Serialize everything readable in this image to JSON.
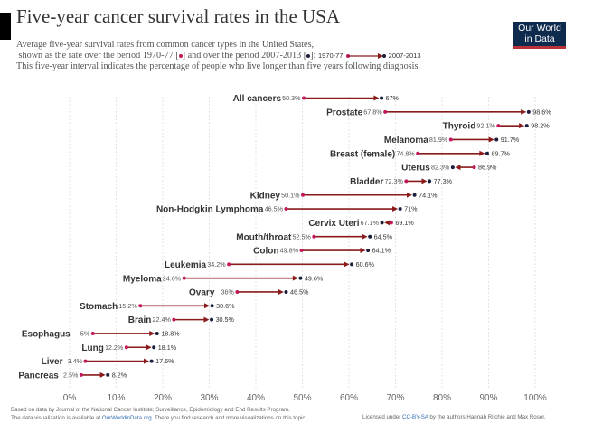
{
  "header": {
    "title": "Five-year cancer survival rates in the USA",
    "subtitle_line1": "Average five-year survival rates from common cancer types in the United States,",
    "subtitle_line2a": "shown as the rate over the period 1970-77 [",
    "subtitle_line2b": "] and over the period 2007-2013 [",
    "subtitle_line2c": "]:",
    "legend_start": "1970-77",
    "legend_end": "2007-2013",
    "subtitle_line3": "This five-year interval indicates the percentage of people who live longer than five years following diagnosis."
  },
  "logo": {
    "line1": "Our World",
    "line2": "in Data"
  },
  "footer": {
    "source_line1": "Based on data by Journal of the National Cancer Institute; Surveillance, Epidemiology and End Results Program.",
    "source_line2a": "The data visualization is available at ",
    "source_link": "OurWorldinData.org",
    "source_line2b": ". There you find research and more visualizations on this topic.",
    "license_a": "Licensed under ",
    "license_link": "CC-BY-SA",
    "license_b": " by the authors Hannah Ritchie and Max Roser."
  },
  "colors": {
    "start": "#c2185b",
    "end": "#1a1f3c",
    "arrow": "#8b1a1a",
    "text": "#333333",
    "grid": "#dddddd"
  },
  "chart_data": {
    "type": "dumbbell",
    "x_ticks": [
      "0%",
      "10%",
      "20%",
      "30%",
      "40%",
      "50%",
      "60%",
      "70%",
      "80%",
      "90%",
      "100%"
    ],
    "xlim": [
      0,
      100
    ],
    "series": [
      {
        "name": "1970-77"
      },
      {
        "name": "2007-2013"
      }
    ],
    "rows": [
      {
        "cancer": "All cancers",
        "start": 50.3,
        "start_label": "50.3%",
        "end": 67,
        "end_label": "67%"
      },
      {
        "cancer": "Prostate",
        "start": 67.8,
        "start_label": "67.8%",
        "end": 98.6,
        "end_label": "98.6%"
      },
      {
        "cancer": "Thyroid",
        "start": 92.1,
        "start_label": "92.1%",
        "end": 98.2,
        "end_label": "98.2%"
      },
      {
        "cancer": "Melanoma",
        "start": 81.9,
        "start_label": "81.9%",
        "end": 91.7,
        "end_label": "91.7%"
      },
      {
        "cancer": "Breast (female)",
        "start": 74.8,
        "start_label": "74.8%",
        "end": 89.7,
        "end_label": "89.7%"
      },
      {
        "cancer": "Uterus",
        "start": 86.9,
        "start_label": "86.9%",
        "end": 82.3,
        "end_label": "82.3%"
      },
      {
        "cancer": "Bladder",
        "start": 72.3,
        "start_label": "72.3%",
        "end": 77.3,
        "end_label": "77.3%"
      },
      {
        "cancer": "Kidney",
        "start": 50.1,
        "start_label": "50.1%",
        "end": 74.1,
        "end_label": "74.1%"
      },
      {
        "cancer": "Non-Hodgkin Lymphoma",
        "start": 46.5,
        "start_label": "46.5%",
        "end": 71,
        "end_label": "71%"
      },
      {
        "cancer": "Cervix Uteri",
        "start": 69.1,
        "start_label": "69.1%",
        "end": 67.1,
        "end_label": "67.1%"
      },
      {
        "cancer": "Mouth/throat",
        "start": 52.5,
        "start_label": "52.5%",
        "end": 64.5,
        "end_label": "64.5%"
      },
      {
        "cancer": "Colon",
        "start": 49.8,
        "start_label": "49.8%",
        "end": 64.1,
        "end_label": "64.1%"
      },
      {
        "cancer": "Leukemia",
        "start": 34.2,
        "start_label": "34.2%",
        "end": 60.6,
        "end_label": "60.6%"
      },
      {
        "cancer": "Myeloma",
        "start": 24.6,
        "start_label": "24.6%",
        "end": 49.6,
        "end_label": "49.6%"
      },
      {
        "cancer": "Ovary",
        "start": 36,
        "start_label": "36%",
        "end": 46.5,
        "end_label": "46.5%"
      },
      {
        "cancer": "Stomach",
        "start": 15.2,
        "start_label": "15.2%",
        "end": 30.6,
        "end_label": "30.6%"
      },
      {
        "cancer": "Brain",
        "start": 22.4,
        "start_label": "22.4%",
        "end": 30.5,
        "end_label": "30.5%"
      },
      {
        "cancer": "Esophagus",
        "start": 5,
        "start_label": "5%",
        "end": 18.8,
        "end_label": "18.8%"
      },
      {
        "cancer": "Lung",
        "start": 12.2,
        "start_label": "12.2%",
        "end": 18.1,
        "end_label": "18.1%"
      },
      {
        "cancer": "Liver",
        "start": 3.4,
        "start_label": "3.4%",
        "end": 17.6,
        "end_label": "17.6%"
      },
      {
        "cancer": "Pancreas",
        "start": 2.5,
        "start_label": "2.5%",
        "end": 8.2,
        "end_label": "8.2%"
      }
    ]
  }
}
